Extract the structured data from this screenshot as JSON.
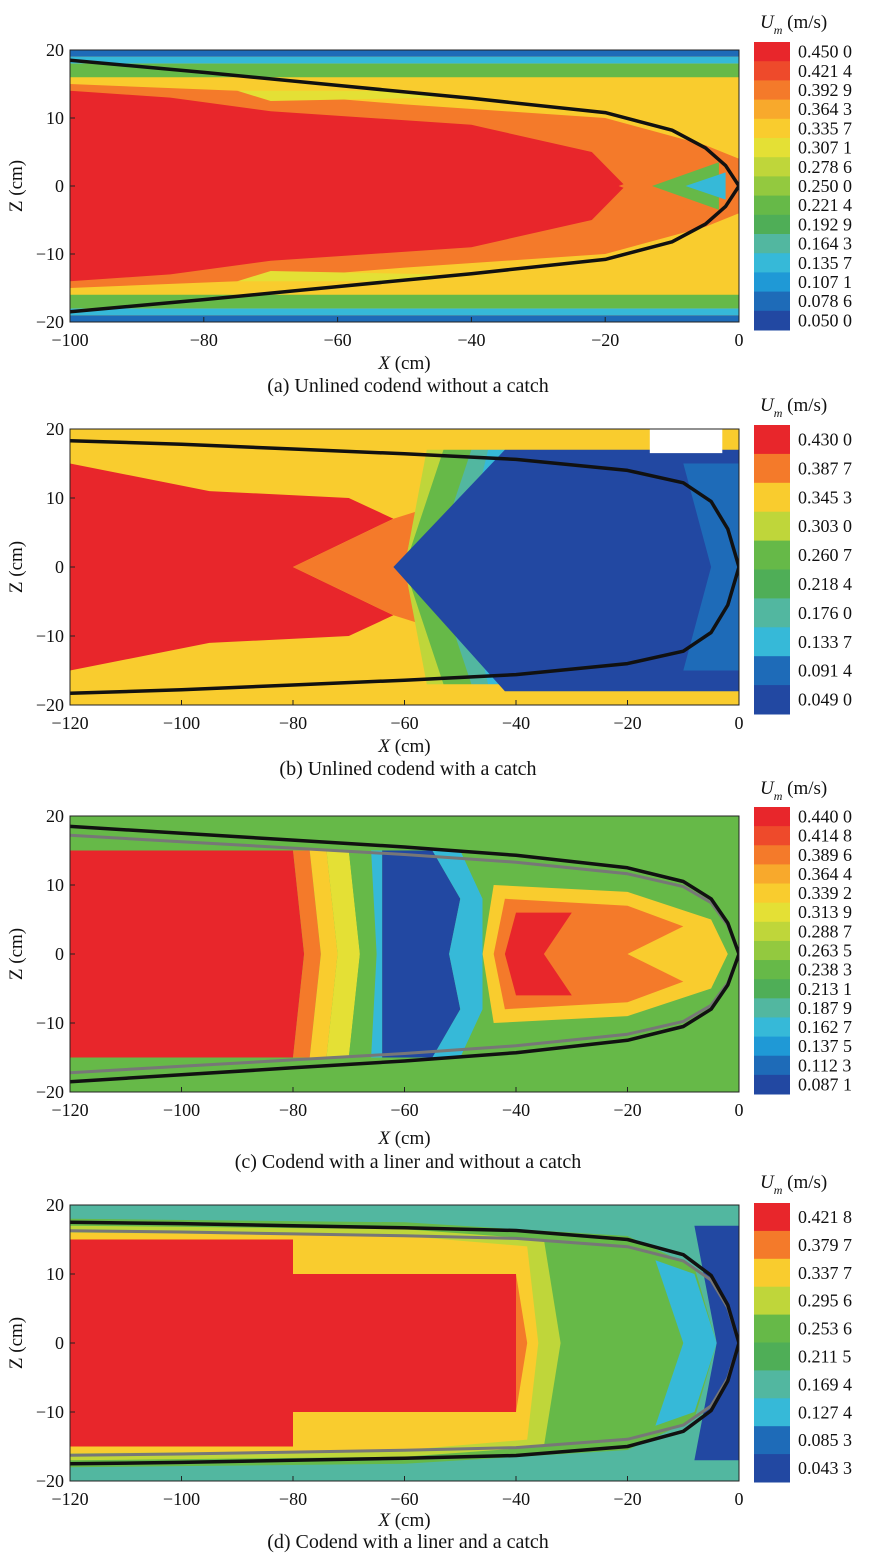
{
  "figure": {
    "panels": [
      {
        "id": "a",
        "caption": "(a) Unlined codend without a catch",
        "xlabel_var": "X",
        "xlabel_unit": " (cm)",
        "ylabel": "Z (cm)",
        "colorbar_title_var": "U",
        "colorbar_title_sub": "m",
        "colorbar_title_unit": " (m/s)",
        "xlim": [
          -100,
          0
        ],
        "ylim": [
          -20,
          20
        ],
        "xticks": [
          "−100",
          "−80",
          "−60",
          "−40",
          "−20",
          "0"
        ],
        "yticks": [
          "20",
          "10",
          "0",
          "−10",
          "−20"
        ],
        "levels": [
          "0.450 0",
          "0.421 4",
          "0.392 9",
          "0.364 3",
          "0.335 7",
          "0.307 1",
          "0.278 6",
          "0.250 0",
          "0.221 4",
          "0.192 9",
          "0.164 3",
          "0.135 7",
          "0.107 1",
          "0.078 6",
          "0.050 0"
        ],
        "colors": [
          "#e8262b",
          "#ee4a2b",
          "#f47a2a",
          "#f8a92c",
          "#f9cc2e",
          "#e4e035",
          "#bfd63a",
          "#93c93f",
          "#66b948",
          "#4fae57",
          "#52b7a0",
          "#36b9d8",
          "#1f99d6",
          "#1e6bb8",
          "#2248a2"
        ]
      },
      {
        "id": "b",
        "caption": "(b) Unlined codend with a catch",
        "xlabel_var": "X",
        "xlabel_unit": " (cm)",
        "ylabel": "Z (cm)",
        "colorbar_title_var": "U",
        "colorbar_title_sub": "m",
        "colorbar_title_unit": " (m/s)",
        "xlim": [
          -120,
          0
        ],
        "ylim": [
          -20,
          20
        ],
        "xticks": [
          "−120",
          "−100",
          "−80",
          "−60",
          "−40",
          "−20",
          "0"
        ],
        "yticks": [
          "20",
          "10",
          "0",
          "−10",
          "−20"
        ],
        "levels": [
          "0.430 0",
          "0.387 7",
          "0.345 3",
          "0.303 0",
          "0.260 7",
          "0.218 4",
          "0.176 0",
          "0.133 7",
          "0.091 4",
          "0.049 0"
        ],
        "colors": [
          "#e8262b",
          "#f47a2a",
          "#f9cc2e",
          "#bfd63a",
          "#66b948",
          "#4fae57",
          "#52b7a0",
          "#36b9d8",
          "#1e6bb8",
          "#2248a2"
        ]
      },
      {
        "id": "c",
        "caption": "(c) Codend with a liner and without a catch",
        "xlabel_var": "X",
        "xlabel_unit": " (cm)",
        "ylabel": "Z (cm)",
        "colorbar_title_var": "U",
        "colorbar_title_sub": "m",
        "colorbar_title_unit": " (m/s)",
        "xlim": [
          -120,
          0
        ],
        "ylim": [
          -20,
          20
        ],
        "xticks": [
          "−120",
          "−100",
          "−80",
          "−60",
          "−40",
          "−20",
          "0"
        ],
        "yticks": [
          "20",
          "10",
          "0",
          "−10",
          "−20"
        ],
        "levels": [
          "0.440 0",
          "0.414 8",
          "0.389 6",
          "0.364 4",
          "0.339 2",
          "0.313 9",
          "0.288 7",
          "0.263 5",
          "0.238 3",
          "0.213 1",
          "0.187 9",
          "0.162 7",
          "0.137 5",
          "0.112 3",
          "0.087 1"
        ],
        "colors": [
          "#e8262b",
          "#ee4a2b",
          "#f47a2a",
          "#f8a92c",
          "#f9cc2e",
          "#e4e035",
          "#bfd63a",
          "#93c93f",
          "#66b948",
          "#4fae57",
          "#52b7a0",
          "#36b9d8",
          "#1f99d6",
          "#1e6bb8",
          "#2248a2"
        ]
      },
      {
        "id": "d",
        "caption": "(d) Codend with a liner and a catch",
        "xlabel_var": "X",
        "xlabel_unit": " (cm)",
        "ylabel": "Z (cm)",
        "colorbar_title_var": "U",
        "colorbar_title_sub": "m",
        "colorbar_title_unit": " (m/s)",
        "xlim": [
          -120,
          0
        ],
        "ylim": [
          -20,
          20
        ],
        "xticks": [
          "−120",
          "−100",
          "−80",
          "−60",
          "−40",
          "−20",
          "0"
        ],
        "yticks": [
          "20",
          "10",
          "0",
          "−10",
          "−20"
        ],
        "levels": [
          "0.421 8",
          "0.379 7",
          "0.337 7",
          "0.295 6",
          "0.253 6",
          "0.211 5",
          "0.169 4",
          "0.127 4",
          "0.085 3",
          "0.043 3"
        ],
        "colors": [
          "#e8262b",
          "#f47a2a",
          "#f9cc2e",
          "#bfd63a",
          "#66b948",
          "#4fae57",
          "#52b7a0",
          "#36b9d8",
          "#1e6bb8",
          "#2248a2"
        ]
      }
    ]
  },
  "chart_data": [
    {
      "type": "heatmap",
      "title": "",
      "caption": "(a) Unlined codend without a catch",
      "xlabel": "X (cm)",
      "ylabel": "Z (cm)",
      "colorbar_label": "Um (m/s)",
      "xlim": [
        -100,
        0
      ],
      "ylim": [
        -20,
        20
      ],
      "x_ticks": [
        -100,
        -80,
        -60,
        -40,
        -20,
        0
      ],
      "y_ticks": [
        -20,
        -10,
        0,
        10,
        20
      ],
      "levels": [
        0.45,
        0.4214,
        0.3929,
        0.3643,
        0.3357,
        0.3071,
        0.2786,
        0.25,
        0.2214,
        0.1929,
        0.1643,
        0.1357,
        0.1071,
        0.0786,
        0.05
      ],
      "codend_outline": {
        "x": [
          -100,
          -80,
          -60,
          -40,
          -20,
          -10,
          -5,
          -2,
          0
        ],
        "z_upper": [
          18.5,
          16.7,
          14.8,
          12.9,
          10.8,
          8.2,
          5.6,
          3.0,
          0
        ]
      }
    },
    {
      "type": "heatmap",
      "title": "",
      "caption": "(b) Unlined codend with a catch",
      "xlabel": "X (cm)",
      "ylabel": "Z (cm)",
      "colorbar_label": "Um (m/s)",
      "xlim": [
        -120,
        0
      ],
      "ylim": [
        -20,
        20
      ],
      "x_ticks": [
        -120,
        -100,
        -80,
        -60,
        -40,
        -20,
        0
      ],
      "y_ticks": [
        -20,
        -10,
        0,
        10,
        20
      ],
      "levels": [
        0.43,
        0.3877,
        0.3453,
        0.303,
        0.2607,
        0.2184,
        0.176,
        0.1337,
        0.0914,
        0.049
      ],
      "codend_outline": {
        "x": [
          -120,
          -100,
          -80,
          -60,
          -40,
          -20,
          -10,
          -5,
          -2,
          0
        ],
        "z_upper": [
          18.3,
          17.8,
          17.1,
          16.4,
          15.6,
          14.0,
          12.2,
          9.5,
          5.5,
          0
        ]
      }
    },
    {
      "type": "heatmap",
      "title": "",
      "caption": "(c) Codend with a liner and without a catch",
      "xlabel": "X (cm)",
      "ylabel": "Z (cm)",
      "colorbar_label": "Um (m/s)",
      "xlim": [
        -120,
        0
      ],
      "ylim": [
        -20,
        20
      ],
      "x_ticks": [
        -120,
        -100,
        -80,
        -60,
        -40,
        -20,
        0
      ],
      "y_ticks": [
        -20,
        -10,
        0,
        10,
        20
      ],
      "levels": [
        0.44,
        0.4148,
        0.3896,
        0.3644,
        0.3392,
        0.3139,
        0.2887,
        0.2635,
        0.2383,
        0.2131,
        0.1879,
        0.1627,
        0.1375,
        0.1123,
        0.0871
      ],
      "codend_outline": {
        "x": [
          -120,
          -100,
          -80,
          -60,
          -40,
          -20,
          -10,
          -5,
          -2,
          0
        ],
        "z_upper": [
          18.5,
          17.5,
          16.5,
          15.5,
          14.3,
          12.5,
          10.5,
          8.0,
          4.5,
          0
        ]
      }
    },
    {
      "type": "heatmap",
      "title": "",
      "caption": "(d) Codend with a liner and a catch",
      "xlabel": "X (cm)",
      "ylabel": "Z (cm)",
      "colorbar_label": "Um (m/s)",
      "xlim": [
        -120,
        0
      ],
      "ylim": [
        -20,
        20
      ],
      "x_ticks": [
        -120,
        -100,
        -80,
        -60,
        -40,
        -20,
        0
      ],
      "y_ticks": [
        -20,
        -10,
        0,
        10,
        20
      ],
      "levels": [
        0.4218,
        0.3797,
        0.3377,
        0.2956,
        0.2536,
        0.2115,
        0.1694,
        0.1274,
        0.0853,
        0.0433
      ],
      "codend_outline": {
        "x": [
          -120,
          -100,
          -80,
          -60,
          -40,
          -20,
          -10,
          -5,
          -2,
          0
        ],
        "z_upper": [
          17.5,
          17.3,
          17.0,
          16.7,
          16.3,
          15.0,
          12.8,
          9.8,
          5.5,
          0
        ]
      }
    }
  ]
}
